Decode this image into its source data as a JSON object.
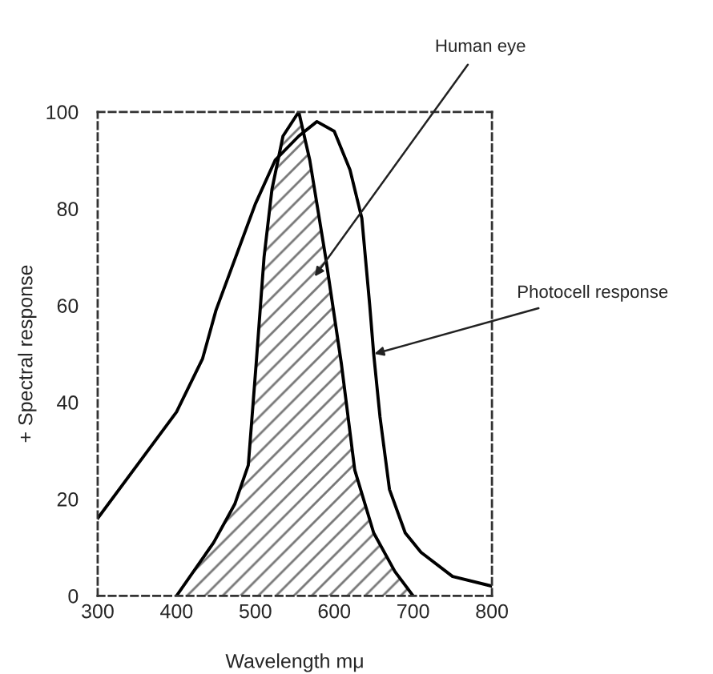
{
  "chart_data": {
    "type": "line",
    "xlabel": "Wavelength mμ",
    "ylabel": "+ Spectral response",
    "xlim": [
      300,
      800
    ],
    "ylim": [
      0,
      100
    ],
    "xticks": [
      300,
      400,
      500,
      600,
      700,
      800
    ],
    "yticks": [
      0,
      20,
      40,
      60,
      80,
      100
    ],
    "grid": false,
    "legend": false,
    "marker": "none",
    "series": [
      {
        "type": "area",
        "color": "#000000",
        "x": [
          400,
          447,
          474,
          491,
          501,
          511,
          521,
          535,
          555,
          569,
          589,
          609,
          626,
          650,
          677,
          700
        ],
        "values": [
          0,
          11,
          19,
          27,
          48,
          70,
          84,
          95,
          100,
          90,
          70,
          48,
          26,
          13,
          5,
          0
        ]
      },
      {
        "color": "#000000",
        "x": [
          300,
          350,
          400,
          433,
          450,
          475,
          500,
          525,
          555,
          578,
          600,
          620,
          635,
          645,
          650,
          658,
          670,
          690,
          710,
          750,
          800
        ],
        "values": [
          16,
          27,
          38,
          49,
          59,
          70,
          81,
          90,
          95,
          98,
          96,
          88,
          78,
          60,
          50,
          37,
          22,
          13,
          9,
          4,
          2
        ]
      }
    ],
    "annotations": [
      "Human eye",
      {
        "text": "Photocell response",
        "x": 651,
        "y": 50
      }
    ]
  }
}
